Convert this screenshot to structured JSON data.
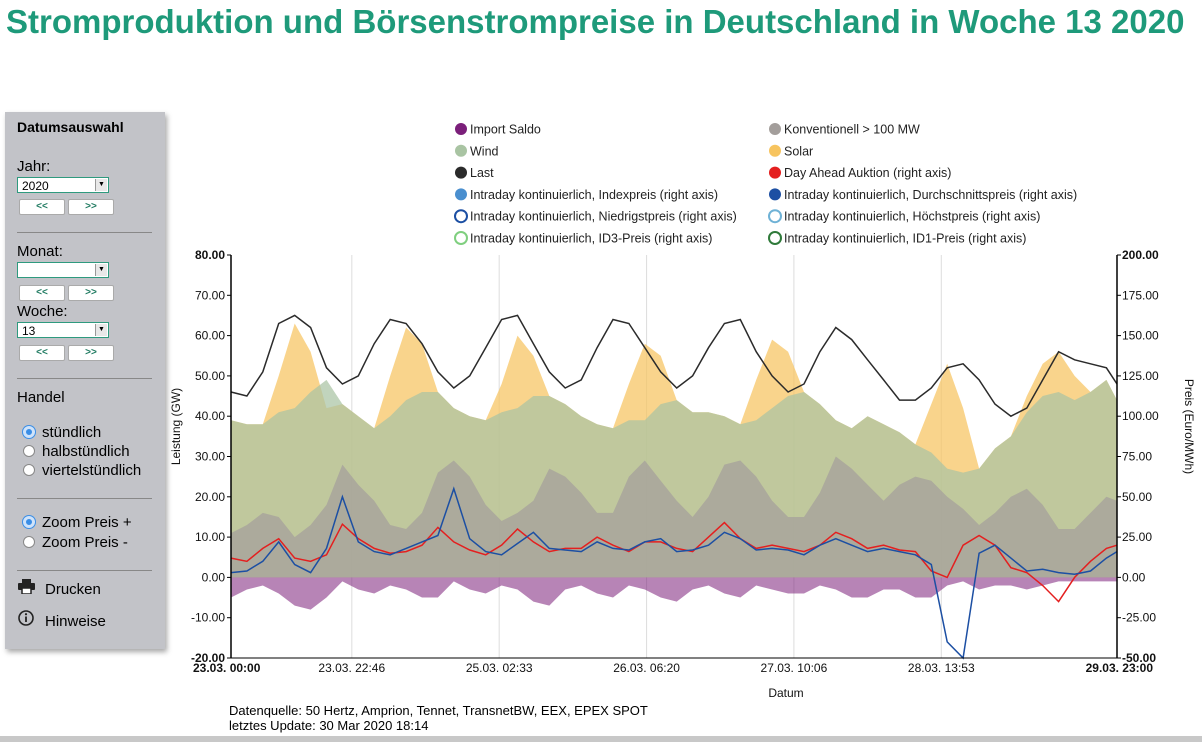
{
  "page": {
    "title": "Stromproduktion und Börsenstrompreise in Deutschland in Woche 13 2020"
  },
  "sidebar": {
    "heading": "Datumsauswahl",
    "year_label": "Jahr:",
    "year_value": "2020",
    "month_label": "Monat:",
    "month_value": "",
    "week_label": "Woche:",
    "week_value": "13",
    "prev_label": "<<",
    "next_label": ">>",
    "trade_label": "Handel",
    "trade_options": [
      "stündlich",
      "halbstündlich",
      "viertelstündlich"
    ],
    "trade_selected": 0,
    "zoom_options": [
      "Zoom Preis +",
      "Zoom Preis -"
    ],
    "zoom_selected": 0,
    "print_label": "Drucken",
    "print_icon": "printer-icon",
    "info_label": "Hinweise",
    "info_icon": "info-icon"
  },
  "footer": {
    "source": "Datenquelle: 50 Hertz, Amprion, Tennet, TransnetBW, EEX, EPEX SPOT",
    "update": "letztes Update: 30 Mar 2020 18:14"
  },
  "chart_data": {
    "type": "area",
    "xlabel": "Datum",
    "ylabel": "Leistung (GW)",
    "y2label": "Preis (Euro/MWh)",
    "ylim": [
      -20,
      80
    ],
    "y2lim": [
      -50,
      200
    ],
    "y_ticks": [
      "80.00",
      "70.00",
      "60.00",
      "50.00",
      "40.00",
      "30.00",
      "20.00",
      "10.00",
      "0.00",
      "-10.00",
      "-20.00"
    ],
    "y2_ticks": [
      "200.00",
      "175.00",
      "150.00",
      "125.00",
      "100.00",
      "75.00",
      "50.00",
      "25.00",
      "0.00",
      "-25.00",
      "-50.00"
    ],
    "x_ticks": [
      "23.03. 00:00",
      "23.03. 22:46",
      "25.03. 02:33",
      "26.03. 06:20",
      "27.03. 10:06",
      "28.03. 13:53",
      "29.03. 23:00"
    ],
    "x_tick_hours": [
      0,
      22.77,
      50.55,
      78.33,
      106.1,
      133.88,
      167
    ],
    "x_range_hours": [
      0,
      167
    ],
    "grid": "vertical",
    "legend_position": "top",
    "legend": [
      {
        "name": "Import Saldo",
        "color": "#7b1f7a",
        "style": "filled"
      },
      {
        "name": "Konventionell > 100 MW",
        "color": "#a39e9b",
        "style": "filled"
      },
      {
        "name": "Wind",
        "color": "#a9c4a3",
        "style": "filled"
      },
      {
        "name": "Solar",
        "color": "#f7c45f",
        "style": "filled"
      },
      {
        "name": "Last",
        "color": "#2b2b2b",
        "style": "filled"
      },
      {
        "name": "Day Ahead Auktion (right axis)",
        "color": "#e41f1f",
        "style": "filled"
      },
      {
        "name": "Intraday kontinuierlich, Indexpreis (right axis)",
        "color": "#4a8fcf",
        "style": "filled"
      },
      {
        "name": "Intraday kontinuierlich, Durchschnittspreis (right axis)",
        "color": "#1c4fa3",
        "style": "filled"
      },
      {
        "name": "Intraday kontinuierlich, Niedrigstpreis (right axis)",
        "color": "#1c4fa3",
        "style": "ring"
      },
      {
        "name": "Intraday kontinuierlich, Höchstpreis (right axis)",
        "color": "#6fb2d6",
        "style": "ring"
      },
      {
        "name": "Intraday kontinuierlich, ID3-Preis (right axis)",
        "color": "#7fcf7f",
        "style": "ring"
      },
      {
        "name": "Intraday kontinuierlich, ID1-Preis (right axis)",
        "color": "#2f7a3a",
        "style": "ring"
      }
    ],
    "hours": [
      0,
      3,
      6,
      9,
      12,
      15,
      18,
      21,
      24,
      27,
      30,
      33,
      36,
      39,
      42,
      45,
      48,
      51,
      54,
      57,
      60,
      63,
      66,
      69,
      72,
      75,
      78,
      81,
      84,
      87,
      90,
      93,
      96,
      99,
      102,
      105,
      108,
      111,
      114,
      117,
      120,
      123,
      126,
      129,
      132,
      135,
      138,
      141,
      144,
      147,
      150,
      153,
      156,
      159,
      162,
      165,
      167
    ],
    "series": [
      {
        "name": "Import Saldo",
        "axis": "left",
        "values": [
          -5,
          -3,
          -2,
          -4,
          -7,
          -8,
          -5,
          -1,
          -3,
          -4,
          -2,
          -3,
          -5,
          -5,
          -1,
          -3,
          -4,
          -2,
          -3,
          -6,
          -7,
          -3,
          -2,
          -4,
          -5,
          -2,
          -3,
          -5,
          -6,
          -3,
          -2,
          -4,
          -5,
          -2,
          -3,
          -4,
          -4,
          -2,
          -3,
          -5,
          -5,
          -3,
          -3,
          -5,
          -5,
          -2,
          -1,
          -3,
          -2,
          -2,
          -3,
          -2,
          -1,
          -1,
          -1,
          -1,
          -1
        ]
      },
      {
        "name": "Konventionell > 100 MW",
        "axis": "left",
        "values": [
          11,
          13,
          16,
          15,
          10,
          13,
          18,
          28,
          23,
          19,
          13,
          12,
          16,
          26,
          29,
          25,
          18,
          14,
          16,
          19,
          27,
          25,
          21,
          16,
          16,
          25,
          29,
          24,
          19,
          15,
          20,
          28,
          29,
          25,
          19,
          15,
          15,
          21,
          30,
          27,
          23,
          19,
          23,
          25,
          24,
          20,
          17,
          13,
          16,
          20,
          22,
          18,
          12,
          12,
          16,
          20,
          19
        ]
      },
      {
        "name": "Wind",
        "axis": "left",
        "values": [
          39,
          38,
          38,
          41,
          42,
          46,
          49,
          43,
          40,
          37,
          40,
          44,
          46,
          46,
          42,
          40,
          39,
          41,
          42,
          45,
          45,
          43,
          40,
          38,
          37,
          39,
          39,
          43,
          44,
          41,
          41,
          40,
          38,
          39,
          42,
          45,
          46,
          43,
          39,
          37,
          40,
          38,
          36,
          33,
          31,
          27,
          26,
          27,
          32,
          35,
          41,
          45,
          46,
          44,
          46,
          49,
          44
        ]
      },
      {
        "name": "Solar",
        "axis": "left",
        "values": [
          39,
          38,
          38,
          50,
          63,
          56,
          42,
          43,
          40,
          37,
          50,
          62,
          58,
          46,
          42,
          40,
          39,
          48,
          60,
          55,
          45,
          43,
          40,
          38,
          37,
          48,
          58,
          55,
          44,
          41,
          41,
          40,
          38,
          49,
          59,
          56,
          46,
          43,
          39,
          37,
          40,
          38,
          36,
          33,
          43,
          53,
          42,
          27,
          32,
          35,
          45,
          53,
          56,
          50,
          46,
          49,
          44
        ]
      },
      {
        "name": "Last",
        "axis": "left",
        "values": [
          46,
          45,
          51,
          63,
          65,
          62,
          52,
          48,
          50,
          58,
          64,
          63,
          58,
          51,
          47,
          50,
          57,
          64,
          65,
          58,
          51,
          47,
          49,
          57,
          64,
          63,
          57,
          51,
          47,
          50,
          57,
          63,
          64,
          56,
          50,
          46,
          48,
          56,
          62,
          59,
          54,
          49,
          44,
          44,
          47,
          52,
          53,
          49,
          43,
          40,
          42,
          49,
          56,
          54,
          53,
          52,
          48
        ]
      },
      {
        "name": "Day Ahead Auktion (right axis)",
        "axis": "right",
        "values": [
          12,
          10,
          18,
          24,
          12,
          10,
          14,
          33,
          24,
          18,
          15,
          16,
          20,
          31,
          22,
          17,
          14,
          20,
          30,
          22,
          16,
          18,
          18,
          25,
          20,
          16,
          22,
          22,
          18,
          16,
          25,
          34,
          24,
          18,
          20,
          18,
          16,
          20,
          28,
          24,
          18,
          20,
          17,
          16,
          4,
          0,
          20,
          26,
          20,
          6,
          3,
          -5,
          -15,
          0,
          10,
          18,
          20
        ]
      },
      {
        "name": "Intraday kontinuierlich, Durchschnittspreis (right axis)",
        "axis": "right",
        "values": [
          3,
          4,
          10,
          22,
          8,
          3,
          18,
          50,
          22,
          16,
          14,
          18,
          22,
          26,
          55,
          24,
          16,
          14,
          21,
          28,
          18,
          17,
          16,
          22,
          18,
          17,
          22,
          24,
          16,
          17,
          20,
          28,
          24,
          17,
          18,
          17,
          14,
          20,
          24,
          20,
          16,
          18,
          16,
          14,
          8,
          -40,
          -50,
          15,
          20,
          12,
          4,
          5,
          3,
          2,
          4,
          12,
          16
        ]
      }
    ]
  }
}
